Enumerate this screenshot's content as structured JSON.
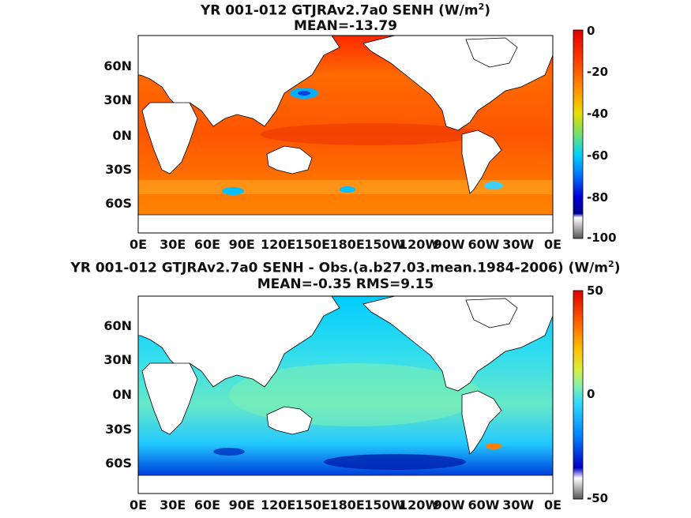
{
  "panels": [
    {
      "title_line1": "YR 001-012 GTJRAv2.7a0  SENH (W/m",
      "title_sup": "2",
      "title_close": ")",
      "title_line2": "MEAN=-13.79",
      "colorbar_ticks": [
        "0",
        "-20",
        "-40",
        "-60",
        "-80",
        "-100"
      ],
      "colorbar_range": [
        -100,
        0
      ]
    },
    {
      "title_line1": "YR 001-012 GTJRAv2.7a0 SENH - Obs.(a.b27.03.mean.1984-2006) (W/m",
      "title_sup": "2",
      "title_close": ")",
      "title_line2": "MEAN=-0.35 RMS=9.15",
      "colorbar_ticks": [
        "50",
        "0",
        "-50"
      ],
      "colorbar_range": [
        -50,
        50
      ]
    }
  ],
  "lat_labels": [
    "60N",
    "30N",
    "0N",
    "30S",
    "60S"
  ],
  "lon_labels": [
    "0E",
    "30E",
    "60E",
    "90E",
    "120E",
    "150E",
    "180E",
    "150W",
    "120W",
    "90W",
    "60W",
    "30W",
    "0E"
  ],
  "chart_data": [
    {
      "type": "heatmap",
      "title": "YR 001-012 GTJRAv2.7a0  SENH (W/m2)",
      "subtitle": "MEAN=-13.79",
      "x_ticks": [
        "0E",
        "30E",
        "60E",
        "90E",
        "120E",
        "150E",
        "180E",
        "150W",
        "120W",
        "90W",
        "60W",
        "30W",
        "0E"
      ],
      "y_ticks": [
        "60N",
        "30N",
        "0N",
        "30S",
        "60S"
      ],
      "colorbar": {
        "min": -100,
        "max": 0,
        "ticks": [
          0,
          -20,
          -40,
          -60,
          -80,
          -100
        ]
      }
    },
    {
      "type": "heatmap",
      "title": "YR 001-012 GTJRAv2.7a0 SENH - Obs.(a.b27.03.mean.1984-2006) (W/m2)",
      "subtitle": "MEAN=-0.35 RMS=9.15",
      "x_ticks": [
        "0E",
        "30E",
        "60E",
        "90E",
        "120E",
        "150E",
        "180E",
        "150W",
        "120W",
        "90W",
        "60W",
        "30W",
        "0E"
      ],
      "y_ticks": [
        "60N",
        "30N",
        "0N",
        "30S",
        "60S"
      ],
      "colorbar": {
        "min": -50,
        "max": 50,
        "ticks": [
          50,
          0,
          -50
        ]
      }
    }
  ]
}
